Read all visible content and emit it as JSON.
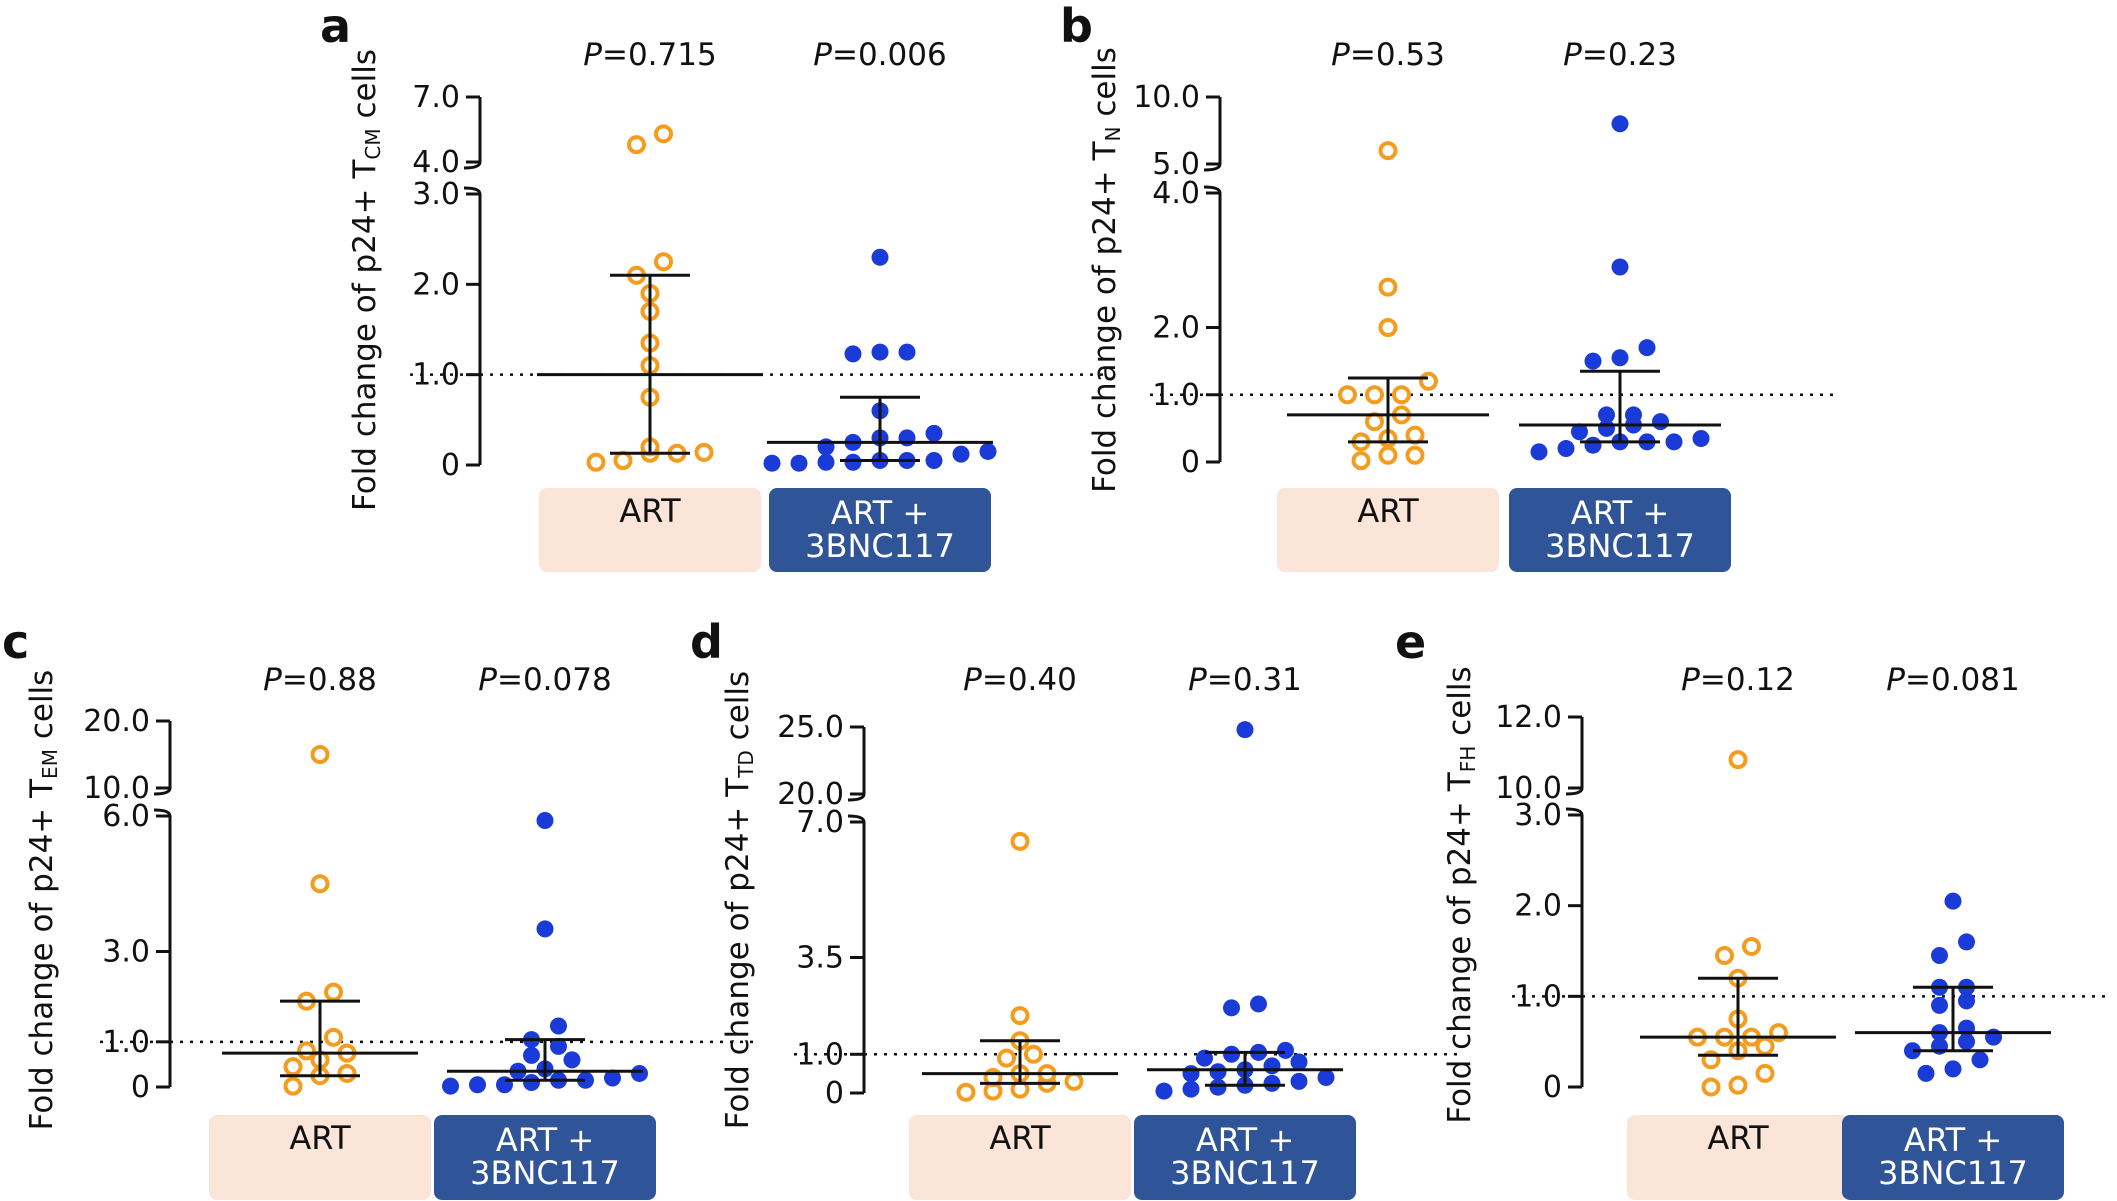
{
  "chart_data": [
    {
      "type": "scatter",
      "panel": "a",
      "ylabel": "Fold change of p24+ T",
      "ylabel_sub": "CM",
      "ylabel_suffix": " cells",
      "y_lower_ticks": [
        0,
        1.0,
        2.0,
        3.0
      ],
      "y_lower_tick_labels": [
        "0",
        "1.0",
        "2.0",
        "3.0"
      ],
      "y_lower_range": [
        0,
        3.0
      ],
      "y_upper_ticks": [
        4.0,
        7.0
      ],
      "y_upper_tick_labels": [
        "4.0",
        "7.0"
      ],
      "y_upper_range": [
        4.0,
        7.0
      ],
      "reference_line": 1.0,
      "groups": [
        {
          "name": "ART",
          "p_label": "P",
          "p_value": "=0.715",
          "color": "#f39c1e",
          "marker": "open-circle",
          "median": 1.0,
          "q1": 0.13,
          "q3": 2.1,
          "points": [
            0.03,
            0.14,
            0.13,
            0.13,
            0.2,
            0.05,
            0.75,
            1.1,
            1.35,
            1.7,
            1.9,
            2.1,
            2.25,
            4.8,
            5.3
          ]
        },
        {
          "name": "ART +\n3BNC117",
          "name_line1": "ART +",
          "name_line2": "3BNC117",
          "p_label": "P",
          "p_value": "=0.006",
          "color": "#1a3bd8",
          "marker": "filled-circle",
          "median": 0.25,
          "q1": 0.05,
          "q3": 0.75,
          "points": [
            0.02,
            0.05,
            0.03,
            0.02,
            0.03,
            0.05,
            0.05,
            0.12,
            0.15,
            0.2,
            0.25,
            0.3,
            0.3,
            0.35,
            0.6,
            1.23,
            1.25,
            1.25,
            2.3
          ]
        }
      ],
      "group_box_colors": [
        "#fbe5d8",
        "#2f5497"
      ],
      "group_box_text_colors": [
        "#111111",
        "#ffffff"
      ]
    },
    {
      "type": "scatter",
      "panel": "b",
      "ylabel": "Fold change of p24+ T",
      "ylabel_sub": "N",
      "ylabel_suffix": " cells",
      "y_lower_ticks": [
        0,
        1.0,
        2.0,
        4.0
      ],
      "y_lower_tick_labels": [
        "0",
        "1.0",
        "2.0",
        "4.0"
      ],
      "y_lower_range": [
        0,
        4.0
      ],
      "y_upper_ticks": [
        5.0,
        10.0
      ],
      "y_upper_tick_labels": [
        "5.0",
        "10.0"
      ],
      "y_upper_range": [
        5.0,
        10.0
      ],
      "reference_line": 1.0,
      "groups": [
        {
          "name": "ART",
          "p_label": "P",
          "p_value": "=0.53",
          "color": "#f39c1e",
          "marker": "open-circle",
          "median": 0.7,
          "q1": 0.3,
          "q3": 1.25,
          "points": [
            0.02,
            0.1,
            0.1,
            0.3,
            0.35,
            0.4,
            0.6,
            0.7,
            1.0,
            1.0,
            1.0,
            1.2,
            2.0,
            2.6,
            6.0
          ]
        },
        {
          "name": "ART +\n3BNC117",
          "name_line1": "ART +",
          "name_line2": "3BNC117",
          "p_label": "P",
          "p_value": "=0.23",
          "color": "#1a3bd8",
          "marker": "filled-circle",
          "median": 0.55,
          "q1": 0.3,
          "q3": 1.35,
          "points": [
            0.15,
            0.2,
            0.25,
            0.3,
            0.3,
            0.3,
            0.35,
            0.45,
            0.5,
            0.55,
            0.6,
            0.7,
            0.7,
            1.5,
            1.55,
            1.7,
            2.9,
            8.0
          ]
        }
      ],
      "group_box_colors": [
        "#fbe5d8",
        "#2f5497"
      ],
      "group_box_text_colors": [
        "#111111",
        "#ffffff"
      ]
    },
    {
      "type": "scatter",
      "panel": "c",
      "ylabel": "Fold change of p24+ T",
      "ylabel_sub": "EM",
      "ylabel_suffix": " cells",
      "y_lower_ticks": [
        0,
        1.0,
        3.0,
        6.0
      ],
      "y_lower_tick_labels": [
        "0",
        "1.0",
        "3.0",
        "6.0"
      ],
      "y_lower_range": [
        0,
        6.0
      ],
      "y_upper_ticks": [
        10.0,
        20.0
      ],
      "y_upper_tick_labels": [
        "10.0",
        "20.0"
      ],
      "y_upper_range": [
        10.0,
        20.0
      ],
      "reference_line": 1.0,
      "groups": [
        {
          "name": "ART",
          "p_label": "P",
          "p_value": "=0.88",
          "color": "#f39c1e",
          "marker": "open-circle",
          "median": 0.75,
          "q1": 0.25,
          "q3": 1.9,
          "points": [
            0.02,
            0.25,
            0.3,
            0.45,
            0.6,
            0.75,
            0.8,
            1.1,
            1.9,
            2.1,
            4.5,
            15.0
          ]
        },
        {
          "name": "ART +\n3BNC117",
          "name_line1": "ART +",
          "name_line2": "3BNC117",
          "p_label": "P",
          "p_value": "=0.078",
          "color": "#1a3bd8",
          "marker": "filled-circle",
          "median": 0.35,
          "q1": 0.15,
          "q3": 1.05,
          "points": [
            0.02,
            0.05,
            0.05,
            0.1,
            0.15,
            0.15,
            0.2,
            0.3,
            0.35,
            0.4,
            0.6,
            0.7,
            0.9,
            1.05,
            1.35,
            3.5,
            5.9
          ]
        }
      ],
      "group_box_colors": [
        "#fbe5d8",
        "#2f5497"
      ],
      "group_box_text_colors": [
        "#111111",
        "#ffffff"
      ]
    },
    {
      "type": "scatter",
      "panel": "d",
      "ylabel": "Fold change of p24+ T",
      "ylabel_sub": "TD",
      "ylabel_suffix": " cells",
      "y_lower_ticks": [
        0,
        1.0,
        3.5,
        7.0
      ],
      "y_lower_tick_labels": [
        "0",
        "1.0",
        "3.5",
        "7.0"
      ],
      "y_lower_range": [
        0,
        7.0
      ],
      "y_upper_ticks": [
        20.0,
        25.0
      ],
      "y_upper_tick_labels": [
        "20.0",
        "25.0"
      ],
      "y_upper_range": [
        20.0,
        25.0
      ],
      "reference_line": 1.0,
      "groups": [
        {
          "name": "ART",
          "p_label": "P",
          "p_value": "=0.40",
          "color": "#f39c1e",
          "marker": "open-circle",
          "median": 0.5,
          "q1": 0.25,
          "q3": 1.35,
          "points": [
            0.02,
            0.05,
            0.1,
            0.25,
            0.3,
            0.4,
            0.5,
            0.5,
            0.9,
            1.0,
            1.35,
            2.0,
            6.5
          ]
        },
        {
          "name": "ART +\n3BNC117",
          "name_line1": "ART +",
          "name_line2": "3BNC117",
          "p_label": "P",
          "p_value": "=0.31",
          "color": "#1a3bd8",
          "marker": "filled-circle",
          "median": 0.6,
          "q1": 0.2,
          "q3": 1.05,
          "points": [
            0.05,
            0.1,
            0.15,
            0.2,
            0.25,
            0.3,
            0.4,
            0.5,
            0.55,
            0.6,
            0.7,
            0.8,
            0.9,
            1.0,
            1.05,
            1.1,
            2.2,
            2.3,
            24.8
          ]
        }
      ],
      "group_box_colors": [
        "#fbe5d8",
        "#2f5497"
      ],
      "group_box_text_colors": [
        "#111111",
        "#ffffff"
      ]
    },
    {
      "type": "scatter",
      "panel": "e",
      "ylabel": "Fold change of p24+ T",
      "ylabel_sub": "FH",
      "ylabel_suffix": " cells",
      "y_lower_ticks": [
        0,
        1.0,
        2.0,
        3.0
      ],
      "y_lower_tick_labels": [
        "0",
        "1.0",
        "2.0",
        "3.0"
      ],
      "y_lower_range": [
        0,
        3.0
      ],
      "y_upper_ticks": [
        10.0,
        12.0
      ],
      "y_upper_tick_labels": [
        "10.0",
        "12.0"
      ],
      "y_upper_range": [
        10.0,
        12.0
      ],
      "reference_line": 1.0,
      "groups": [
        {
          "name": "ART",
          "p_label": "P",
          "p_value": "=0.12",
          "color": "#f39c1e",
          "marker": "open-circle",
          "median": 0.55,
          "q1": 0.35,
          "q3": 1.2,
          "points": [
            0.0,
            0.02,
            0.15,
            0.3,
            0.4,
            0.45,
            0.55,
            0.55,
            0.55,
            0.6,
            0.75,
            1.2,
            1.45,
            1.55,
            10.8
          ]
        },
        {
          "name": "ART +\n3BNC117",
          "name_line1": "ART +",
          "name_line2": "3BNC117",
          "p_label": "P",
          "p_value": "=0.081",
          "color": "#1a3bd8",
          "marker": "filled-circle",
          "median": 0.6,
          "q1": 0.4,
          "q3": 1.1,
          "points": [
            0.15,
            0.2,
            0.3,
            0.4,
            0.45,
            0.5,
            0.55,
            0.6,
            0.65,
            0.9,
            0.95,
            1.1,
            1.1,
            1.45,
            1.6,
            2.05
          ]
        }
      ],
      "group_box_colors": [
        "#fbe5d8",
        "#2f5497"
      ],
      "group_box_text_colors": [
        "#111111",
        "#ffffff"
      ]
    }
  ]
}
